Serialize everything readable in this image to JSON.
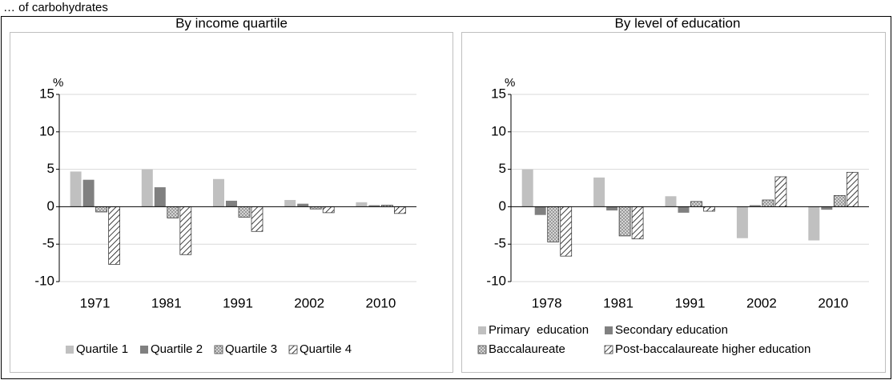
{
  "title": "… of carbohydrates",
  "chart_data": [
    {
      "type": "bar",
      "title": "By income quartile",
      "ylabel": "%",
      "categories": [
        "1971",
        "1981",
        "1991",
        "2002",
        "2010"
      ],
      "series": [
        {
          "name": "Quartile 1",
          "color": "#c0c0c0",
          "values": [
            4.7,
            5.0,
            3.7,
            0.9,
            0.6
          ]
        },
        {
          "name": "Quartile 2",
          "color": "#808080",
          "values": [
            3.6,
            2.6,
            0.8,
            0.4,
            0.2
          ]
        },
        {
          "name": "Quartile 3",
          "color": "#a6a6a6",
          "pattern": "dots",
          "values": [
            -0.7,
            -1.5,
            -1.4,
            -0.3,
            0.2
          ]
        },
        {
          "name": "Quartile 4",
          "color": "#000000",
          "pattern": "hatch",
          "values": [
            -7.7,
            -6.4,
            -3.3,
            -0.8,
            -0.9
          ]
        }
      ],
      "ylim": [
        -10,
        15
      ],
      "yticks": [
        -10,
        -5,
        0,
        5,
        10,
        15
      ],
      "grid": true,
      "legend": "bottom"
    },
    {
      "type": "bar",
      "title": "By level of education",
      "ylabel": "%",
      "categories": [
        "1978",
        "1981",
        "1991",
        "2002",
        "2010"
      ],
      "series": [
        {
          "name": "Primary  education",
          "color": "#c0c0c0",
          "values": [
            5.0,
            3.9,
            1.4,
            -4.2,
            -4.5
          ]
        },
        {
          "name": "Secondary education",
          "color": "#808080",
          "values": [
            -1.1,
            -0.5,
            -0.8,
            0.2,
            -0.4
          ]
        },
        {
          "name": "Baccalaureate",
          "color": "#a6a6a6",
          "pattern": "dots",
          "values": [
            -4.7,
            -3.9,
            0.7,
            0.9,
            1.5
          ]
        },
        {
          "name": "Post-baccalaureate higher education",
          "color": "#000000",
          "pattern": "hatch",
          "values": [
            -6.6,
            -4.3,
            -0.6,
            4.0,
            4.6
          ]
        }
      ],
      "ylim": [
        -10,
        15
      ],
      "yticks": [
        -10,
        -5,
        0,
        5,
        10,
        15
      ],
      "grid": true,
      "legend": "bottom"
    }
  ]
}
